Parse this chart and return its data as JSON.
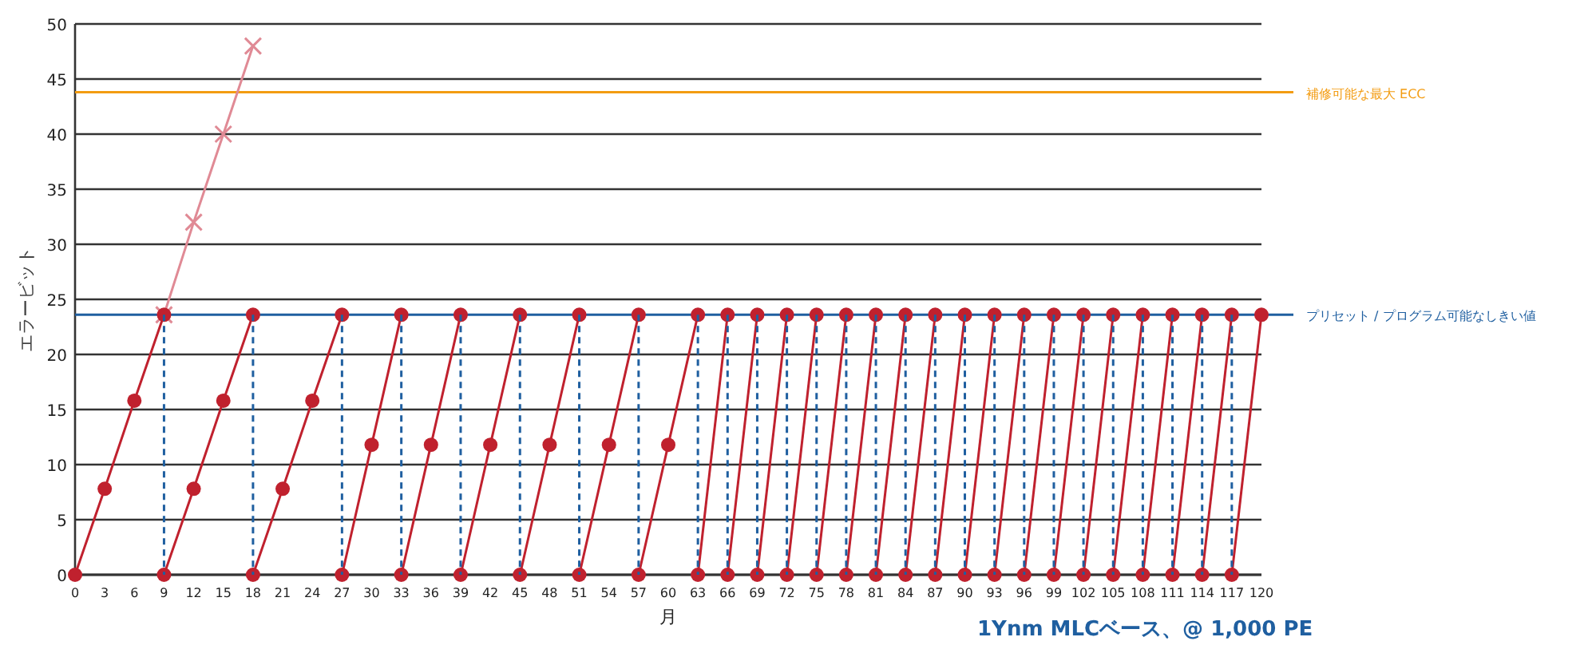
{
  "chart_data": {
    "type": "line",
    "xlabel": "月",
    "ylabel": "エラービット",
    "xlim": [
      0,
      120
    ],
    "xticks": [
      0,
      3,
      6,
      9,
      12,
      15,
      18,
      21,
      24,
      27,
      30,
      33,
      36,
      39,
      42,
      45,
      48,
      51,
      54,
      57,
      60,
      63,
      66,
      69,
      72,
      75,
      78,
      81,
      84,
      87,
      90,
      93,
      96,
      99,
      102,
      105,
      108,
      111,
      114,
      117,
      120
    ],
    "ylim": [
      0,
      50
    ],
    "yticks": [
      0,
      5,
      10,
      15,
      20,
      25,
      30,
      35,
      40,
      45,
      50
    ],
    "grid": "y",
    "series": [
      {
        "color": "#e08a95",
        "marker": "cross",
        "line_style": "solid",
        "x": [
          9,
          12,
          15,
          18
        ],
        "values": [
          23.6,
          32,
          40,
          48
        ]
      },
      {
        "color": "#c0212e",
        "marker": "circle",
        "line_style": "solid",
        "x": [
          0,
          3,
          6,
          9
        ],
        "values": [
          0,
          7.8,
          15.8,
          23.6
        ]
      },
      {
        "color": "#c0212e",
        "marker": "circle",
        "line_style": "solid",
        "x": [
          9,
          12,
          15,
          18
        ],
        "values": [
          0,
          7.8,
          15.8,
          23.6
        ]
      },
      {
        "color": "#c0212e",
        "marker": "circle",
        "line_style": "solid",
        "x": [
          18,
          21,
          24,
          27
        ],
        "values": [
          0,
          7.8,
          15.8,
          23.6
        ]
      },
      {
        "color": "#c0212e",
        "marker": "circle",
        "line_style": "solid",
        "x": [
          27,
          30,
          33
        ],
        "values": [
          0,
          11.8,
          23.6
        ]
      },
      {
        "color": "#c0212e",
        "marker": "circle",
        "line_style": "solid",
        "x": [
          33,
          36,
          39
        ],
        "values": [
          0,
          11.8,
          23.6
        ]
      },
      {
        "color": "#c0212e",
        "marker": "circle",
        "line_style": "solid",
        "x": [
          39,
          42,
          45
        ],
        "values": [
          0,
          11.8,
          23.6
        ]
      },
      {
        "color": "#c0212e",
        "marker": "circle",
        "line_style": "solid",
        "x": [
          45,
          48,
          51
        ],
        "values": [
          0,
          11.8,
          23.6
        ]
      },
      {
        "color": "#c0212e",
        "marker": "circle",
        "line_style": "solid",
        "x": [
          51,
          54,
          57
        ],
        "values": [
          0,
          11.8,
          23.6
        ]
      },
      {
        "color": "#c0212e",
        "marker": "circle",
        "line_style": "solid",
        "x": [
          57,
          60,
          63
        ],
        "values": [
          0,
          11.8,
          23.6
        ]
      },
      {
        "color": "#c0212e",
        "marker": "circle",
        "line_style": "solid",
        "x": [
          63,
          66
        ],
        "values": [
          0,
          23.6
        ]
      },
      {
        "color": "#c0212e",
        "marker": "circle",
        "line_style": "solid",
        "x": [
          66,
          69
        ],
        "values": [
          0,
          23.6
        ]
      },
      {
        "color": "#c0212e",
        "marker": "circle",
        "line_style": "solid",
        "x": [
          69,
          72
        ],
        "values": [
          0,
          23.6
        ]
      },
      {
        "color": "#c0212e",
        "marker": "circle",
        "line_style": "solid",
        "x": [
          72,
          75
        ],
        "values": [
          0,
          23.6
        ]
      },
      {
        "color": "#c0212e",
        "marker": "circle",
        "line_style": "solid",
        "x": [
          75,
          78
        ],
        "values": [
          0,
          23.6
        ]
      },
      {
        "color": "#c0212e",
        "marker": "circle",
        "line_style": "solid",
        "x": [
          78,
          81
        ],
        "values": [
          0,
          23.6
        ]
      },
      {
        "color": "#c0212e",
        "marker": "circle",
        "line_style": "solid",
        "x": [
          81,
          84
        ],
        "values": [
          0,
          23.6
        ]
      },
      {
        "color": "#c0212e",
        "marker": "circle",
        "line_style": "solid",
        "x": [
          84,
          87
        ],
        "values": [
          0,
          23.6
        ]
      },
      {
        "color": "#c0212e",
        "marker": "circle",
        "line_style": "solid",
        "x": [
          87,
          90
        ],
        "values": [
          0,
          23.6
        ]
      },
      {
        "color": "#c0212e",
        "marker": "circle",
        "line_style": "solid",
        "x": [
          90,
          93
        ],
        "values": [
          0,
          23.6
        ]
      },
      {
        "color": "#c0212e",
        "marker": "circle",
        "line_style": "solid",
        "x": [
          93,
          96
        ],
        "values": [
          0,
          23.6
        ]
      },
      {
        "color": "#c0212e",
        "marker": "circle",
        "line_style": "solid",
        "x": [
          96,
          99
        ],
        "values": [
          0,
          23.6
        ]
      },
      {
        "color": "#c0212e",
        "marker": "circle",
        "line_style": "solid",
        "x": [
          99,
          102
        ],
        "values": [
          0,
          23.6
        ]
      },
      {
        "color": "#c0212e",
        "marker": "circle",
        "line_style": "solid",
        "x": [
          102,
          105
        ],
        "values": [
          0,
          23.6
        ]
      },
      {
        "color": "#c0212e",
        "marker": "circle",
        "line_style": "solid",
        "x": [
          105,
          108
        ],
        "values": [
          0,
          23.6
        ]
      },
      {
        "color": "#c0212e",
        "marker": "circle",
        "line_style": "solid",
        "x": [
          108,
          111
        ],
        "values": [
          0,
          23.6
        ]
      },
      {
        "color": "#c0212e",
        "marker": "circle",
        "line_style": "solid",
        "x": [
          111,
          114
        ],
        "values": [
          0,
          23.6
        ]
      },
      {
        "color": "#c0212e",
        "marker": "circle",
        "line_style": "solid",
        "x": [
          114,
          117
        ],
        "values": [
          0,
          23.6
        ]
      },
      {
        "color": "#c0212e",
        "marker": "circle",
        "line_style": "solid",
        "x": [
          117,
          120
        ],
        "values": [
          0,
          23.6
        ]
      },
      {
        "color": "#1f5fa0",
        "marker": "none",
        "line_style": "dashed",
        "x": [
          9,
          9
        ],
        "values": [
          23.6,
          0
        ]
      },
      {
        "color": "#1f5fa0",
        "marker": "none",
        "line_style": "dashed",
        "x": [
          18,
          18
        ],
        "values": [
          23.6,
          0
        ]
      },
      {
        "color": "#1f5fa0",
        "marker": "none",
        "line_style": "dashed",
        "x": [
          27,
          27
        ],
        "values": [
          23.6,
          0
        ]
      },
      {
        "color": "#1f5fa0",
        "marker": "none",
        "line_style": "dashed",
        "x": [
          33,
          33
        ],
        "values": [
          23.6,
          0
        ]
      },
      {
        "color": "#1f5fa0",
        "marker": "none",
        "line_style": "dashed",
        "x": [
          39,
          39
        ],
        "values": [
          23.6,
          0
        ]
      },
      {
        "color": "#1f5fa0",
        "marker": "none",
        "line_style": "dashed",
        "x": [
          45,
          45
        ],
        "values": [
          23.6,
          0
        ]
      },
      {
        "color": "#1f5fa0",
        "marker": "none",
        "line_style": "dashed",
        "x": [
          51,
          51
        ],
        "values": [
          23.6,
          0
        ]
      },
      {
        "color": "#1f5fa0",
        "marker": "none",
        "line_style": "dashed",
        "x": [
          57,
          57
        ],
        "values": [
          23.6,
          0
        ]
      },
      {
        "color": "#1f5fa0",
        "marker": "none",
        "line_style": "dashed",
        "x": [
          63,
          63
        ],
        "values": [
          23.6,
          0
        ]
      },
      {
        "color": "#1f5fa0",
        "marker": "none",
        "line_style": "dashed",
        "x": [
          66,
          66
        ],
        "values": [
          23.6,
          0
        ]
      },
      {
        "color": "#1f5fa0",
        "marker": "none",
        "line_style": "dashed",
        "x": [
          69,
          69
        ],
        "values": [
          23.6,
          0
        ]
      },
      {
        "color": "#1f5fa0",
        "marker": "none",
        "line_style": "dashed",
        "x": [
          72,
          72
        ],
        "values": [
          23.6,
          0
        ]
      },
      {
        "color": "#1f5fa0",
        "marker": "none",
        "line_style": "dashed",
        "x": [
          75,
          75
        ],
        "values": [
          23.6,
          0
        ]
      },
      {
        "color": "#1f5fa0",
        "marker": "none",
        "line_style": "dashed",
        "x": [
          78,
          78
        ],
        "values": [
          23.6,
          0
        ]
      },
      {
        "color": "#1f5fa0",
        "marker": "none",
        "line_style": "dashed",
        "x": [
          81,
          81
        ],
        "values": [
          23.6,
          0
        ]
      },
      {
        "color": "#1f5fa0",
        "marker": "none",
        "line_style": "dashed",
        "x": [
          84,
          84
        ],
        "values": [
          23.6,
          0
        ]
      },
      {
        "color": "#1f5fa0",
        "marker": "none",
        "line_style": "dashed",
        "x": [
          87,
          87
        ],
        "values": [
          23.6,
          0
        ]
      },
      {
        "color": "#1f5fa0",
        "marker": "none",
        "line_style": "dashed",
        "x": [
          90,
          90
        ],
        "values": [
          23.6,
          0
        ]
      },
      {
        "color": "#1f5fa0",
        "marker": "none",
        "line_style": "dashed",
        "x": [
          93,
          93
        ],
        "values": [
          23.6,
          0
        ]
      },
      {
        "color": "#1f5fa0",
        "marker": "none",
        "line_style": "dashed",
        "x": [
          96,
          96
        ],
        "values": [
          23.6,
          0
        ]
      },
      {
        "color": "#1f5fa0",
        "marker": "none",
        "line_style": "dashed",
        "x": [
          99,
          99
        ],
        "values": [
          23.6,
          0
        ]
      },
      {
        "color": "#1f5fa0",
        "marker": "none",
        "line_style": "dashed",
        "x": [
          102,
          102
        ],
        "values": [
          23.6,
          0
        ]
      },
      {
        "color": "#1f5fa0",
        "marker": "none",
        "line_style": "dashed",
        "x": [
          105,
          105
        ],
        "values": [
          23.6,
          0
        ]
      },
      {
        "color": "#1f5fa0",
        "marker": "none",
        "line_style": "dashed",
        "x": [
          108,
          108
        ],
        "values": [
          23.6,
          0
        ]
      },
      {
        "color": "#1f5fa0",
        "marker": "none",
        "line_style": "dashed",
        "x": [
          111,
          111
        ],
        "values": [
          23.6,
          0
        ]
      },
      {
        "color": "#1f5fa0",
        "marker": "none",
        "line_style": "dashed",
        "x": [
          114,
          114
        ],
        "values": [
          23.6,
          0
        ]
      },
      {
        "color": "#1f5fa0",
        "marker": "none",
        "line_style": "dashed",
        "x": [
          117,
          117
        ],
        "values": [
          23.6,
          0
        ]
      }
    ],
    "ref_lines": [
      {
        "axis": "y",
        "value": 43.8,
        "label": "補修可能な最大 ECC",
        "color": "#f39c12",
        "line_style": "solid"
      },
      {
        "axis": "y",
        "value": 23.6,
        "label": "プリセット / プログラム可能なしきい値",
        "color": "#1f5fa0",
        "line_style": "solid"
      }
    ],
    "annotations": [
      "1Ynm MLCベース、@ 1,000 PE"
    ]
  }
}
